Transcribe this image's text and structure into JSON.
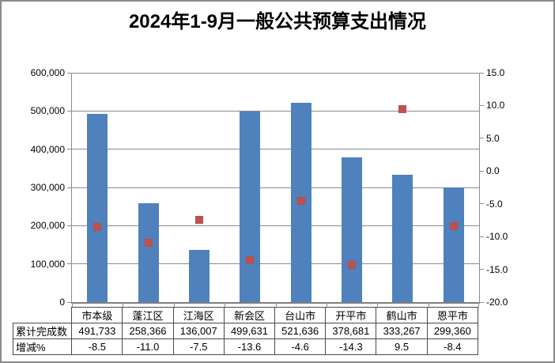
{
  "title": "2024年1-9月一般公共预算支出情况",
  "colors": {
    "bar": "#4f81bd",
    "marker": "#c0504d",
    "gridline": "#8c8c8c",
    "axis": "#7f7f7f",
    "table_border": "#4a4a4a",
    "frame_border": "#8a8a8a",
    "background": "#ffffff"
  },
  "chart_data": {
    "type": "bar",
    "title": "2024年1-9月一般公共预算支出情况",
    "categories": [
      "市本级",
      "蓬江区",
      "江海区",
      "新会区",
      "台山市",
      "开平市",
      "鹤山市",
      "恩平市"
    ],
    "series": [
      {
        "name": "累计完成数",
        "type": "bar",
        "axis": "left",
        "color": "#4f81bd",
        "values": [
          491733,
          258366,
          136007,
          499631,
          521636,
          378681,
          333267,
          299360
        ]
      },
      {
        "name": "增减%",
        "type": "scatter",
        "axis": "right",
        "color": "#c0504d",
        "values": [
          -8.5,
          -11.0,
          -7.5,
          -13.6,
          -4.6,
          -14.3,
          9.5,
          -8.4
        ]
      }
    ],
    "left_axis": {
      "min": 0,
      "max": 600000,
      "tick_values": [
        0,
        100000,
        200000,
        300000,
        400000,
        500000,
        600000
      ],
      "tick_labels": [
        "0",
        "100,000",
        "200,000",
        "300,000",
        "400,000",
        "500,000",
        "600,000"
      ]
    },
    "right_axis": {
      "min": -20,
      "max": 15,
      "tick_values": [
        -20,
        -15,
        -10,
        -5,
        0,
        5,
        10,
        15
      ],
      "tick_labels": [
        "-20.0",
        "-15.0",
        "-10.0",
        "-5.0",
        "0.0",
        "5.0",
        "10.0",
        "15.0"
      ]
    },
    "grid": true,
    "legend": "none"
  },
  "table": {
    "corner_label": "",
    "header": [
      "市本级",
      "蓬江区",
      "江海区",
      "新会区",
      "台山市",
      "开平市",
      "鹤山市",
      "恩平市"
    ],
    "rows": [
      {
        "label": "累计完成数",
        "cells": [
          "491,733",
          "258,366",
          "136,007",
          "499,631",
          "521,636",
          "378,681",
          "333,267",
          "299,360"
        ]
      },
      {
        "label": "增减%",
        "cells": [
          "-8.5",
          "-11.0",
          "-7.5",
          "-13.6",
          "-4.6",
          "-14.3",
          "9.5",
          "-8.4"
        ]
      }
    ]
  }
}
